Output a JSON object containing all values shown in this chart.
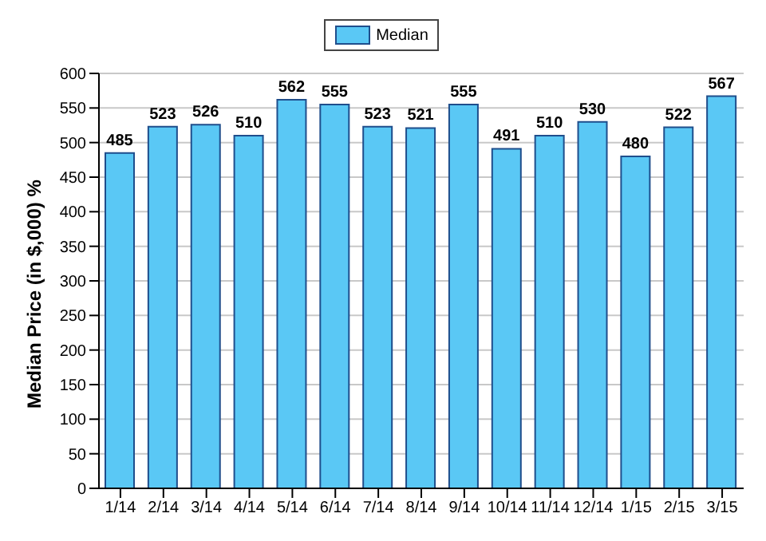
{
  "chart_data": {
    "type": "bar",
    "ylabel": "Median Price (in $,000) %",
    "categories": [
      "1/14",
      "2/14",
      "3/14",
      "4/14",
      "5/14",
      "6/14",
      "7/14",
      "8/14",
      "9/14",
      "10/14",
      "11/14",
      "12/14",
      "1/15",
      "2/15",
      "3/15"
    ],
    "series": [
      {
        "name": "Median",
        "color": "#5ac8f5",
        "values": [
          485,
          523,
          526,
          510,
          562,
          555,
          523,
          521,
          555,
          491,
          510,
          530,
          480,
          522,
          567
        ]
      }
    ],
    "ylim": [
      0,
      600
    ],
    "yticks": [
      0,
      50,
      100,
      150,
      200,
      250,
      300,
      350,
      400,
      450,
      500,
      550,
      600
    ],
    "grid": "y",
    "legend": "top",
    "data_labels": true
  }
}
